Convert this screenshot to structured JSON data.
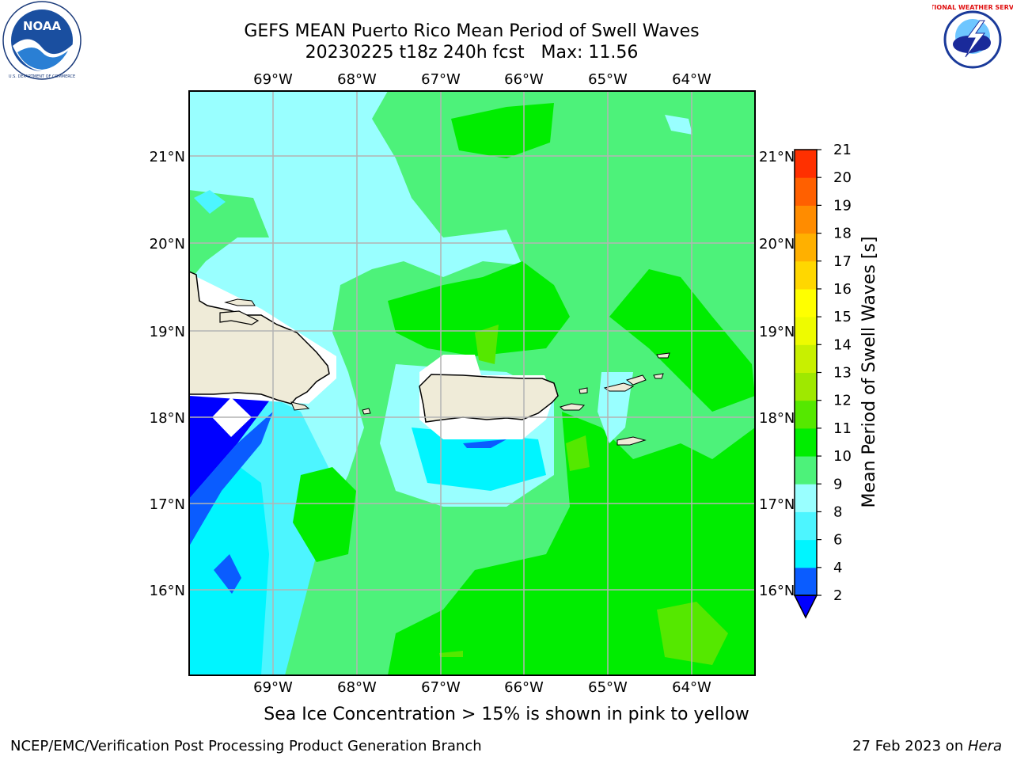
{
  "header": {
    "title_line1": "GEFS MEAN Puerto Rico Mean Period of Swell Waves",
    "title_line2": "20230225 t18z 240h fcst   Max: 11.56"
  },
  "logos": {
    "left_icon": "noaa-logo-icon",
    "left_text": "NOAA",
    "left_ring_text": "NATIONAL OCEANIC AND ATMOSPHERIC ADMINISTRATION · U.S. DEPARTMENT OF COMMERCE",
    "right_icon": "nws-logo-icon",
    "right_ring_text": "NATIONAL WEATHER SERVICE"
  },
  "map": {
    "lon_labels": [
      "69°W",
      "68°W",
      "67°W",
      "66°W",
      "65°W",
      "64°W"
    ],
    "lat_labels": [
      "21°N",
      "20°N",
      "19°N",
      "18°N",
      "17°N",
      "16°N"
    ],
    "land_color": "#efebd8",
    "ocean_dominant_color": "#4df27a"
  },
  "colorbar": {
    "label": "Mean Period of Swell Waves [s]",
    "ticks": [
      "2",
      "4",
      "6",
      "8",
      "9",
      "10",
      "11",
      "12",
      "13",
      "14",
      "15",
      "16",
      "17",
      "18",
      "19",
      "20",
      "21"
    ],
    "colors": [
      "#0a5cff",
      "#00f5ff",
      "#4df5ff",
      "#99ffff",
      "#4df27a",
      "#00ed00",
      "#55e800",
      "#9fe800",
      "#c8f000",
      "#eefb00",
      "#ffff00",
      "#ffd700",
      "#ffb000",
      "#ff8c00",
      "#ff6000",
      "#ff3000",
      "#ff0000"
    ],
    "extend_color": "#0000ff"
  },
  "bottom_note": "Sea Ice Concentration > 15% is shown in pink to yellow",
  "footer": {
    "left": "NCEP/EMC/Verification Post Processing Product Generation Branch",
    "right_date": "27 Feb 2023 on ",
    "right_machine": "Hera"
  }
}
